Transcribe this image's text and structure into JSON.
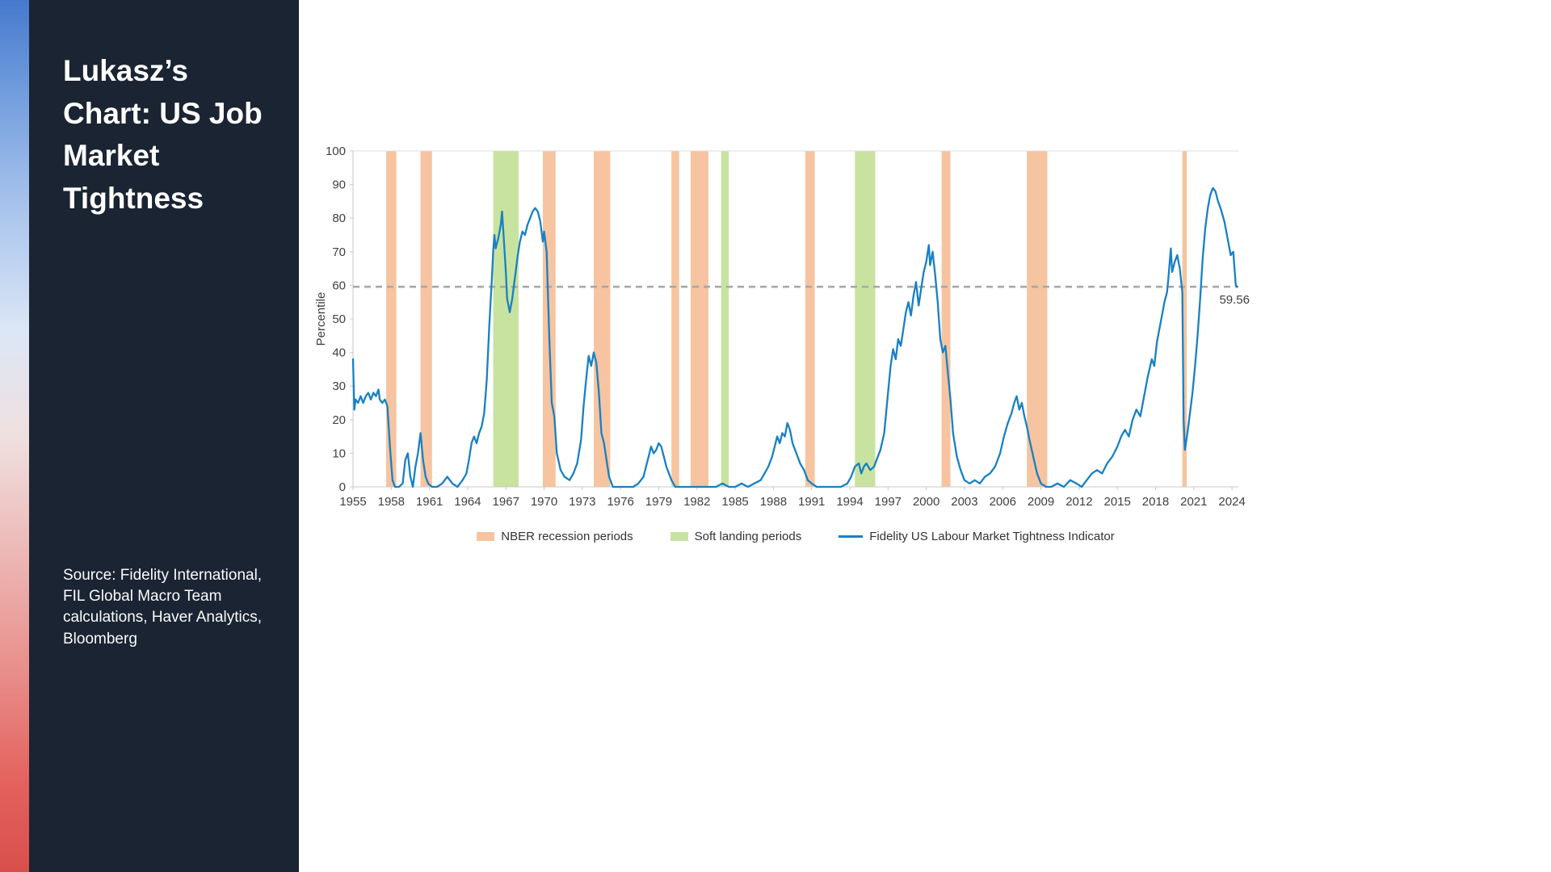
{
  "sidebar": {
    "title": "Lukasz’s Chart: US Job Market Tightness",
    "source": "Source: Fidelity International, FIL Global Macro Team calculations, Haver Analytics, Bloomberg"
  },
  "chart_data": {
    "type": "line",
    "title": "",
    "xlabel": "",
    "ylabel": "Percentile",
    "xlim": [
      1955,
      2024.5
    ],
    "ylim": [
      0,
      100
    ],
    "xticks": [
      1955,
      1958,
      1961,
      1964,
      1967,
      1970,
      1973,
      1976,
      1979,
      1982,
      1985,
      1988,
      1991,
      1994,
      1997,
      2000,
      2003,
      2006,
      2009,
      2012,
      2015,
      2018,
      2021,
      2024
    ],
    "yticks": [
      0,
      10,
      20,
      30,
      40,
      50,
      60,
      70,
      80,
      90,
      100
    ],
    "grid": "off",
    "legend_position": "bottom-center",
    "reference_line": {
      "value": 59.56,
      "label": "59.56",
      "style": "dashed",
      "color": "#a8a8a8"
    },
    "bands": {
      "recessions": {
        "label": "NBER recession periods",
        "color": "#f6c4a0",
        "ranges": [
          [
            1957.6,
            1958.4
          ],
          [
            1960.3,
            1961.2
          ],
          [
            1969.9,
            1970.9
          ],
          [
            1973.9,
            1975.2
          ],
          [
            1980.0,
            1980.6
          ],
          [
            1981.5,
            1982.9
          ],
          [
            1990.5,
            1991.25
          ],
          [
            2001.2,
            2001.9
          ],
          [
            2007.9,
            2009.5
          ],
          [
            2020.1,
            2020.45
          ]
        ]
      },
      "soft_landings": {
        "label": "Soft landing periods",
        "color": "#c8e3a0",
        "ranges": [
          [
            1966.0,
            1968.0
          ],
          [
            1983.9,
            1984.5
          ],
          [
            1994.4,
            1996.0
          ]
        ]
      }
    },
    "series": [
      {
        "name": "Fidelity US Labour Market Tightness Indicator",
        "color": "#1880c4",
        "points": [
          [
            1955.0,
            38
          ],
          [
            1955.1,
            23
          ],
          [
            1955.2,
            26
          ],
          [
            1955.4,
            25
          ],
          [
            1955.6,
            27
          ],
          [
            1955.8,
            25
          ],
          [
            1956.0,
            27
          ],
          [
            1956.2,
            28
          ],
          [
            1956.4,
            26
          ],
          [
            1956.6,
            28
          ],
          [
            1956.8,
            27
          ],
          [
            1957.0,
            29
          ],
          [
            1957.1,
            26
          ],
          [
            1957.3,
            25
          ],
          [
            1957.5,
            26
          ],
          [
            1957.7,
            24
          ],
          [
            1957.9,
            12
          ],
          [
            1958.1,
            2
          ],
          [
            1958.3,
            0
          ],
          [
            1958.6,
            0
          ],
          [
            1958.9,
            1
          ],
          [
            1959.1,
            8
          ],
          [
            1959.3,
            10
          ],
          [
            1959.5,
            3
          ],
          [
            1959.7,
            0
          ],
          [
            1959.9,
            6
          ],
          [
            1960.1,
            10
          ],
          [
            1960.3,
            16
          ],
          [
            1960.5,
            8
          ],
          [
            1960.7,
            3
          ],
          [
            1960.9,
            1
          ],
          [
            1961.2,
            0
          ],
          [
            1961.6,
            0
          ],
          [
            1962.0,
            1
          ],
          [
            1962.4,
            3
          ],
          [
            1962.8,
            1
          ],
          [
            1963.2,
            0
          ],
          [
            1963.6,
            2
          ],
          [
            1963.9,
            4
          ],
          [
            1964.1,
            8
          ],
          [
            1964.3,
            13
          ],
          [
            1964.5,
            15
          ],
          [
            1964.7,
            13
          ],
          [
            1964.9,
            16
          ],
          [
            1965.1,
            18
          ],
          [
            1965.3,
            22
          ],
          [
            1965.5,
            32
          ],
          [
            1965.7,
            48
          ],
          [
            1965.9,
            62
          ],
          [
            1966.0,
            70
          ],
          [
            1966.1,
            75
          ],
          [
            1966.2,
            71
          ],
          [
            1966.4,
            74
          ],
          [
            1966.6,
            78
          ],
          [
            1966.7,
            82
          ],
          [
            1966.8,
            76
          ],
          [
            1967.0,
            64
          ],
          [
            1967.1,
            56
          ],
          [
            1967.3,
            52
          ],
          [
            1967.5,
            56
          ],
          [
            1967.7,
            62
          ],
          [
            1967.9,
            68
          ],
          [
            1968.1,
            73
          ],
          [
            1968.3,
            76
          ],
          [
            1968.5,
            75
          ],
          [
            1968.7,
            78
          ],
          [
            1968.9,
            80
          ],
          [
            1969.1,
            82
          ],
          [
            1969.3,
            83
          ],
          [
            1969.5,
            82
          ],
          [
            1969.7,
            79
          ],
          [
            1969.9,
            73
          ],
          [
            1970.0,
            76
          ],
          [
            1970.2,
            70
          ],
          [
            1970.4,
            45
          ],
          [
            1970.6,
            25
          ],
          [
            1970.8,
            21
          ],
          [
            1971.0,
            10
          ],
          [
            1971.3,
            5
          ],
          [
            1971.6,
            3
          ],
          [
            1972.0,
            2
          ],
          [
            1972.3,
            4
          ],
          [
            1972.6,
            7
          ],
          [
            1972.9,
            14
          ],
          [
            1973.1,
            24
          ],
          [
            1973.3,
            32
          ],
          [
            1973.5,
            39
          ],
          [
            1973.7,
            36
          ],
          [
            1973.9,
            40
          ],
          [
            1974.1,
            37
          ],
          [
            1974.3,
            28
          ],
          [
            1974.5,
            16
          ],
          [
            1974.7,
            13
          ],
          [
            1974.9,
            8
          ],
          [
            1975.1,
            3
          ],
          [
            1975.4,
            0
          ],
          [
            1975.8,
            0
          ],
          [
            1976.2,
            0
          ],
          [
            1976.6,
            0
          ],
          [
            1977.0,
            0
          ],
          [
            1977.4,
            1
          ],
          [
            1977.8,
            3
          ],
          [
            1978.0,
            6
          ],
          [
            1978.2,
            9
          ],
          [
            1978.4,
            12
          ],
          [
            1978.6,
            10
          ],
          [
            1978.8,
            11
          ],
          [
            1979.0,
            13
          ],
          [
            1979.2,
            12
          ],
          [
            1979.4,
            9
          ],
          [
            1979.6,
            6
          ],
          [
            1979.8,
            4
          ],
          [
            1980.0,
            2
          ],
          [
            1980.3,
            0
          ],
          [
            1980.8,
            0
          ],
          [
            1981.5,
            0
          ],
          [
            1982.0,
            0
          ],
          [
            1982.5,
            0
          ],
          [
            1983.0,
            0
          ],
          [
            1983.5,
            0
          ],
          [
            1984.0,
            1
          ],
          [
            1984.5,
            0
          ],
          [
            1985.0,
            0
          ],
          [
            1985.5,
            1
          ],
          [
            1986.0,
            0
          ],
          [
            1986.5,
            1
          ],
          [
            1987.0,
            2
          ],
          [
            1987.3,
            4
          ],
          [
            1987.6,
            6
          ],
          [
            1987.9,
            9
          ],
          [
            1988.1,
            12
          ],
          [
            1988.3,
            15
          ],
          [
            1988.5,
            13
          ],
          [
            1988.7,
            16
          ],
          [
            1988.9,
            15
          ],
          [
            1989.1,
            19
          ],
          [
            1989.3,
            17
          ],
          [
            1989.5,
            13
          ],
          [
            1989.7,
            11
          ],
          [
            1989.9,
            9
          ],
          [
            1990.1,
            7
          ],
          [
            1990.4,
            5
          ],
          [
            1990.7,
            2
          ],
          [
            1991.0,
            1
          ],
          [
            1991.4,
            0
          ],
          [
            1991.8,
            0
          ],
          [
            1992.3,
            0
          ],
          [
            1992.8,
            0
          ],
          [
            1993.3,
            0
          ],
          [
            1993.8,
            1
          ],
          [
            1994.1,
            3
          ],
          [
            1994.4,
            6
          ],
          [
            1994.7,
            7
          ],
          [
            1994.9,
            4
          ],
          [
            1995.1,
            6
          ],
          [
            1995.3,
            7
          ],
          [
            1995.6,
            5
          ],
          [
            1995.9,
            6
          ],
          [
            1996.1,
            8
          ],
          [
            1996.4,
            11
          ],
          [
            1996.7,
            16
          ],
          [
            1997.0,
            28
          ],
          [
            1997.2,
            36
          ],
          [
            1997.4,
            41
          ],
          [
            1997.6,
            38
          ],
          [
            1997.8,
            44
          ],
          [
            1998.0,
            42
          ],
          [
            1998.2,
            47
          ],
          [
            1998.4,
            52
          ],
          [
            1998.6,
            55
          ],
          [
            1998.8,
            51
          ],
          [
            1999.0,
            57
          ],
          [
            1999.2,
            61
          ],
          [
            1999.4,
            54
          ],
          [
            1999.6,
            59
          ],
          [
            1999.8,
            64
          ],
          [
            2000.0,
            67
          ],
          [
            2000.2,
            72
          ],
          [
            2000.3,
            66
          ],
          [
            2000.5,
            70
          ],
          [
            2000.7,
            63
          ],
          [
            2000.9,
            55
          ],
          [
            2001.1,
            44
          ],
          [
            2001.3,
            40
          ],
          [
            2001.5,
            42
          ],
          [
            2001.7,
            34
          ],
          [
            2001.9,
            26
          ],
          [
            2002.1,
            16
          ],
          [
            2002.4,
            9
          ],
          [
            2002.7,
            5
          ],
          [
            2003.0,
            2
          ],
          [
            2003.4,
            1
          ],
          [
            2003.8,
            2
          ],
          [
            2004.2,
            1
          ],
          [
            2004.6,
            3
          ],
          [
            2005.0,
            4
          ],
          [
            2005.4,
            6
          ],
          [
            2005.8,
            10
          ],
          [
            2006.1,
            15
          ],
          [
            2006.4,
            19
          ],
          [
            2006.7,
            22
          ],
          [
            2006.9,
            25
          ],
          [
            2007.1,
            27
          ],
          [
            2007.3,
            23
          ],
          [
            2007.5,
            25
          ],
          [
            2007.7,
            21
          ],
          [
            2007.9,
            18
          ],
          [
            2008.1,
            14
          ],
          [
            2008.4,
            9
          ],
          [
            2008.7,
            4
          ],
          [
            2009.0,
            1
          ],
          [
            2009.4,
            0
          ],
          [
            2009.8,
            0
          ],
          [
            2010.3,
            1
          ],
          [
            2010.8,
            0
          ],
          [
            2011.3,
            2
          ],
          [
            2011.8,
            1
          ],
          [
            2012.2,
            0
          ],
          [
            2012.6,
            2
          ],
          [
            2013.0,
            4
          ],
          [
            2013.4,
            5
          ],
          [
            2013.8,
            4
          ],
          [
            2014.2,
            7
          ],
          [
            2014.6,
            9
          ],
          [
            2015.0,
            12
          ],
          [
            2015.3,
            15
          ],
          [
            2015.6,
            17
          ],
          [
            2015.9,
            15
          ],
          [
            2016.2,
            20
          ],
          [
            2016.5,
            23
          ],
          [
            2016.8,
            21
          ],
          [
            2017.1,
            27
          ],
          [
            2017.4,
            33
          ],
          [
            2017.7,
            38
          ],
          [
            2017.9,
            36
          ],
          [
            2018.1,
            43
          ],
          [
            2018.4,
            49
          ],
          [
            2018.7,
            55
          ],
          [
            2018.9,
            58
          ],
          [
            2019.0,
            62
          ],
          [
            2019.2,
            71
          ],
          [
            2019.3,
            64
          ],
          [
            2019.5,
            67
          ],
          [
            2019.7,
            69
          ],
          [
            2019.9,
            65
          ],
          [
            2020.1,
            58
          ],
          [
            2020.2,
            20
          ],
          [
            2020.3,
            11
          ],
          [
            2020.5,
            16
          ],
          [
            2020.7,
            22
          ],
          [
            2020.9,
            28
          ],
          [
            2021.1,
            36
          ],
          [
            2021.3,
            45
          ],
          [
            2021.5,
            56
          ],
          [
            2021.7,
            68
          ],
          [
            2021.9,
            77
          ],
          [
            2022.1,
            83
          ],
          [
            2022.3,
            87
          ],
          [
            2022.5,
            89
          ],
          [
            2022.7,
            88
          ],
          [
            2022.9,
            85
          ],
          [
            2023.1,
            83
          ],
          [
            2023.4,
            79
          ],
          [
            2023.7,
            73
          ],
          [
            2023.9,
            69
          ],
          [
            2024.1,
            70
          ],
          [
            2024.3,
            60
          ],
          [
            2024.4,
            59.56
          ]
        ]
      }
    ],
    "axis_colors": {
      "frame": "#c9c9c9",
      "tick_text": "#404040"
    }
  }
}
